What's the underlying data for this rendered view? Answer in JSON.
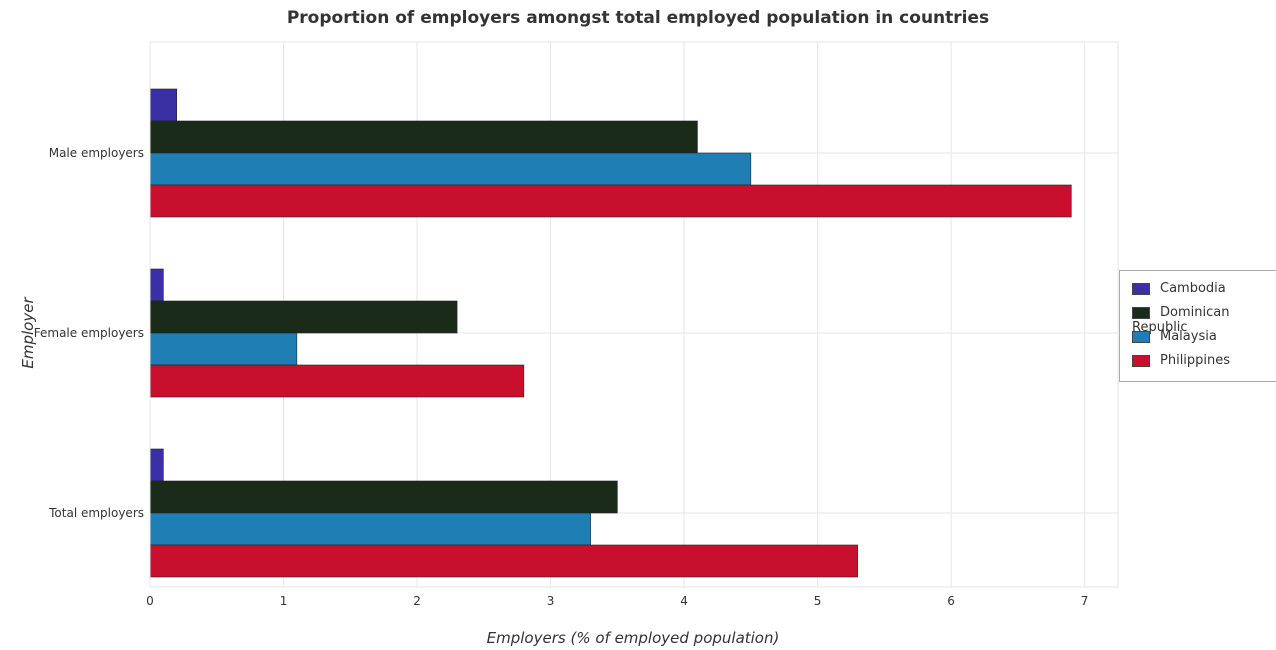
{
  "chart_data": {
    "type": "bar",
    "orientation": "horizontal",
    "title": "Proportion of employers amongst total employed population in countries",
    "xlabel": "Employers (% of employed population)",
    "ylabel": "Employer",
    "categories": [
      "Total employers",
      "Female employers",
      "Male employers"
    ],
    "xlim": [
      0,
      7.25
    ],
    "xticks": [
      0,
      1,
      2,
      3,
      4,
      5,
      6,
      7
    ],
    "grid": true,
    "legend_position": "right",
    "series": [
      {
        "name": "Cambodia",
        "color": "#3b2fa6",
        "values": [
          0.1,
          0.1,
          0.2
        ]
      },
      {
        "name": "Dominican Republic",
        "color": "#1a2b1a",
        "values": [
          3.5,
          2.3,
          4.1
        ]
      },
      {
        "name": "Malaysia",
        "color": "#1f7fb5",
        "values": [
          3.3,
          1.1,
          4.5
        ]
      },
      {
        "name": "Philippines",
        "color": "#c8102e",
        "values": [
          5.3,
          2.8,
          6.9
        ]
      }
    ]
  }
}
